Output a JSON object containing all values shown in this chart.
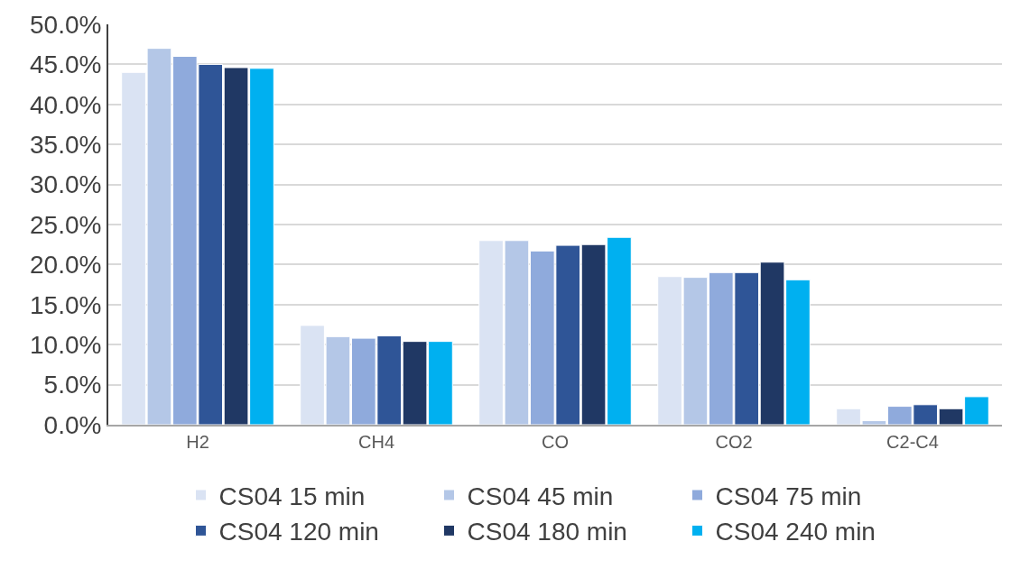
{
  "chart_data": {
    "type": "bar",
    "categories": [
      "H2",
      "CH4",
      "CO",
      "CO2",
      "C2-C4"
    ],
    "series": [
      {
        "name": "CS04 15 min",
        "color": "#dae3f3",
        "values": [
          44.0,
          12.4,
          23.0,
          18.5,
          2.0
        ]
      },
      {
        "name": "CS04 45 min",
        "color": "#b4c7e7",
        "values": [
          47.0,
          11.0,
          23.0,
          18.4,
          0.5
        ]
      },
      {
        "name": "CS04 75 min",
        "color": "#8faadc",
        "values": [
          46.0,
          10.8,
          21.7,
          19.0,
          2.3
        ]
      },
      {
        "name": "CS04 120 min",
        "color": "#2f5597",
        "values": [
          45.0,
          11.1,
          22.4,
          19.0,
          2.5
        ]
      },
      {
        "name": "CS04 180 min",
        "color": "#203864",
        "values": [
          44.6,
          10.4,
          22.5,
          20.3,
          2.0
        ]
      },
      {
        "name": "CS04 240 min",
        "color": "#00b0f0",
        "values": [
          44.5,
          10.4,
          23.4,
          18.1,
          3.5
        ]
      }
    ],
    "ylim": [
      0,
      50
    ],
    "yticks": [
      {
        "value": 0,
        "label": "0.0%"
      },
      {
        "value": 5,
        "label": "5.0%"
      },
      {
        "value": 10,
        "label": "10.0%"
      },
      {
        "value": 15,
        "label": "15.0%"
      },
      {
        "value": 20,
        "label": "20.0%"
      },
      {
        "value": 25,
        "label": "25.0%"
      },
      {
        "value": 30,
        "label": "30.0%"
      },
      {
        "value": 35,
        "label": "35.0%"
      },
      {
        "value": 40,
        "label": "40.0%"
      },
      {
        "value": 45,
        "label": "45.0%"
      },
      {
        "value": 50,
        "label": "50.0%"
      }
    ],
    "grid": "y",
    "legend": "bottom"
  }
}
